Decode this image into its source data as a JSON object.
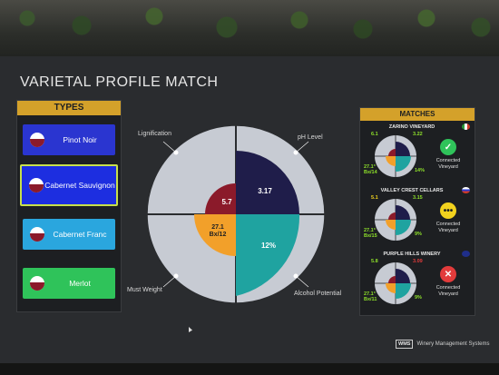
{
  "title": "VARIETAL PROFILE MATCH",
  "types": {
    "header": "TYPES",
    "items": [
      {
        "label": "Pinot Noir",
        "selected": false
      },
      {
        "label": "Cabernet Sauvignon",
        "selected": true
      },
      {
        "label": "Cabernet Franc",
        "selected": false
      },
      {
        "label": "Merlot",
        "selected": false
      }
    ]
  },
  "chart": {
    "labels": {
      "lignification": "Lignification",
      "ph_level": "pH Level",
      "must_weight": "Must Weight",
      "alcohol_potential": "Alcohol Potential"
    },
    "values": {
      "center_top_left": "5.7",
      "top_right": "3.17",
      "bottom_left": "27.1\nBx/12",
      "bottom_right": "12%"
    }
  },
  "matches": {
    "header": "MATCHES",
    "items": [
      {
        "name": "ZARINO VINEYARD",
        "v_tl": "6.1",
        "v_tr": "3.22",
        "v_bl": "27.1°\nBx/14",
        "v_br": "14%",
        "status": "Connected\nVineyard",
        "status_icon": "check-icon",
        "status_color": "#2fc35a",
        "v_tr_color": "#8ee02a",
        "v_tl_color": "#8ee02a"
      },
      {
        "name": "VALLEY CREST CELLARS",
        "v_tl": "5.1",
        "v_tr": "3.15",
        "v_bl": "27.1°\nBx/15",
        "v_br": "9%",
        "status": "Connected\nVineyard",
        "status_icon": "dots-icon",
        "status_color": "#f2d21e",
        "v_tr_color": "#8ee02a",
        "v_tl_color": "#f2d21e"
      },
      {
        "name": "PURPLE HILLS WINERY",
        "v_tl": "5.8",
        "v_tr": "3.09",
        "v_bl": "27.1°\nBx/11",
        "v_br": "9%",
        "status": "Connected\nVineyard",
        "status_icon": "x-icon",
        "status_color": "#e23b3b",
        "v_tr_color": "#e23b3b",
        "v_tl_color": "#8ee02a"
      }
    ]
  },
  "brand": {
    "logo": "WMS",
    "name": "Winery Management Systems"
  },
  "colors": {
    "accent": "#d4a12a",
    "navy": "#1f1d4a",
    "maroon": "#8b1a2a",
    "orange": "#f2a02a",
    "teal": "#1fa3a0",
    "grey": "#c7cbd3"
  }
}
